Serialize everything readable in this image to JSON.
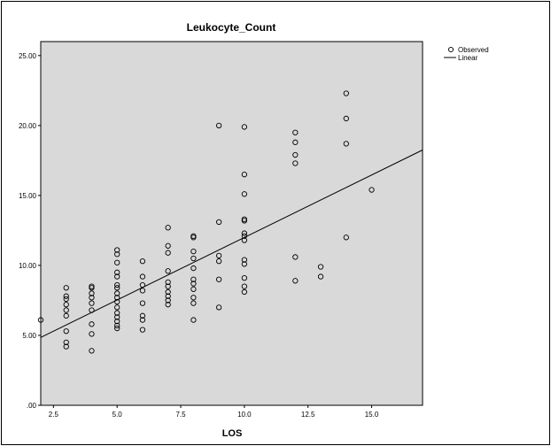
{
  "chart_data": {
    "type": "scatter",
    "title": "Leukocyte_Count",
    "xlabel": "LOS",
    "ylabel": "",
    "xlim": [
      2,
      17
    ],
    "ylim": [
      0,
      26
    ],
    "xticks": [
      2.5,
      5,
      7.5,
      10,
      12.5,
      15
    ],
    "xtick_labels": [
      "2.5",
      "5.0",
      "7.5",
      "10.0",
      "12.5",
      "15.0"
    ],
    "yticks": [
      0,
      5,
      10,
      15,
      20,
      25
    ],
    "ytick_labels": [
      ".00",
      "5.00",
      "10.00",
      "15.00",
      "20.00",
      "25.00"
    ],
    "grid": false,
    "legend_position": "top-right",
    "plot_background": "#d9d9d9",
    "legend": [
      {
        "label": "Observed",
        "marker": "circle"
      },
      {
        "label": "Linear",
        "marker": "line"
      }
    ],
    "series": [
      {
        "name": "Observed",
        "kind": "points",
        "points": [
          [
            2,
            6.1
          ],
          [
            3,
            8.4
          ],
          [
            3,
            7.8
          ],
          [
            3,
            7.6
          ],
          [
            3,
            7.2
          ],
          [
            3,
            6.8
          ],
          [
            3,
            6.4
          ],
          [
            3,
            5.3
          ],
          [
            3,
            4.5
          ],
          [
            3,
            4.2
          ],
          [
            4,
            8.5
          ],
          [
            4,
            8.4
          ],
          [
            4,
            8.0
          ],
          [
            4,
            7.7
          ],
          [
            4,
            7.3
          ],
          [
            4,
            6.8
          ],
          [
            4,
            5.8
          ],
          [
            4,
            5.1
          ],
          [
            4,
            3.9
          ],
          [
            5,
            11.1
          ],
          [
            5,
            10.8
          ],
          [
            5,
            10.2
          ],
          [
            5,
            9.5
          ],
          [
            5,
            9.2
          ],
          [
            5,
            8.6
          ],
          [
            5,
            8.4
          ],
          [
            5,
            8.0
          ],
          [
            5,
            7.7
          ],
          [
            5,
            7.4
          ],
          [
            5,
            7.0
          ],
          [
            5,
            6.6
          ],
          [
            5,
            6.3
          ],
          [
            5,
            6.0
          ],
          [
            5,
            5.7
          ],
          [
            5,
            5.5
          ],
          [
            6,
            10.3
          ],
          [
            6,
            9.2
          ],
          [
            6,
            8.6
          ],
          [
            6,
            8.2
          ],
          [
            6,
            7.3
          ],
          [
            6,
            6.4
          ],
          [
            6,
            6.1
          ],
          [
            6,
            5.4
          ],
          [
            7,
            12.7
          ],
          [
            7,
            11.4
          ],
          [
            7,
            10.9
          ],
          [
            7,
            9.6
          ],
          [
            7,
            8.8
          ],
          [
            7,
            8.5
          ],
          [
            7,
            8.1
          ],
          [
            7,
            7.8
          ],
          [
            7,
            7.5
          ],
          [
            7,
            7.2
          ],
          [
            8,
            12.1
          ],
          [
            8,
            12.0
          ],
          [
            8,
            11.0
          ],
          [
            8,
            10.5
          ],
          [
            8,
            9.8
          ],
          [
            8,
            9.0
          ],
          [
            8,
            8.7
          ],
          [
            8,
            8.3
          ],
          [
            8,
            7.7
          ],
          [
            8,
            7.3
          ],
          [
            8,
            6.1
          ],
          [
            9,
            20.0
          ],
          [
            9,
            13.1
          ],
          [
            9,
            10.7
          ],
          [
            9,
            10.3
          ],
          [
            9,
            9.0
          ],
          [
            9,
            7.0
          ],
          [
            10,
            19.9
          ],
          [
            10,
            16.5
          ],
          [
            10,
            15.1
          ],
          [
            10,
            13.3
          ],
          [
            10,
            13.2
          ],
          [
            10,
            12.3
          ],
          [
            10,
            12.1
          ],
          [
            10,
            11.8
          ],
          [
            10,
            10.4
          ],
          [
            10,
            10.1
          ],
          [
            10,
            9.1
          ],
          [
            10,
            8.5
          ],
          [
            10,
            8.1
          ],
          [
            12,
            19.5
          ],
          [
            12,
            18.8
          ],
          [
            12,
            17.9
          ],
          [
            12,
            17.3
          ],
          [
            12,
            10.6
          ],
          [
            12,
            8.9
          ],
          [
            13,
            9.9
          ],
          [
            13,
            9.2
          ],
          [
            14,
            22.3
          ],
          [
            14,
            20.5
          ],
          [
            14,
            18.7
          ],
          [
            14,
            12.0
          ],
          [
            15,
            15.4
          ]
        ]
      },
      {
        "name": "Linear",
        "kind": "line",
        "points": [
          [
            2,
            4.85
          ],
          [
            17,
            18.25
          ]
        ]
      }
    ]
  }
}
